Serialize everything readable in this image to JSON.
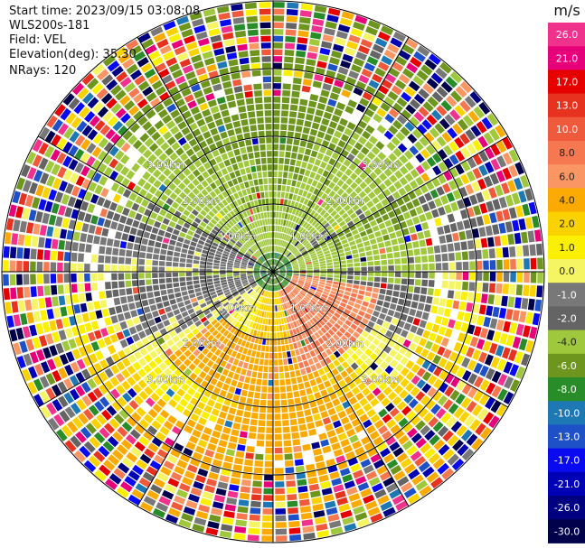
{
  "header": {
    "start_time": "Start time: 2023/09/15 03:08:08",
    "instrument": "WLS200s-181",
    "field": "Field: VEL",
    "elevation": "Elevation(deg): 35.30",
    "nrays": "NRays: 120"
  },
  "colorbar": {
    "unit": "m/s",
    "ticks": [
      "26.0",
      "21.0",
      "17.0",
      "13.0",
      "10.0",
      "8.0",
      "6.0",
      "4.0",
      "2.0",
      "1.0",
      "0.0",
      "-1.0",
      "-2.0",
      "-4.0",
      "-6.0",
      "-8.0",
      "-10.0",
      "-13.0",
      "-17.0",
      "-21.0",
      "-26.0",
      "-30.0"
    ],
    "colors": [
      "#f0328c",
      "#e6007a",
      "#e60000",
      "#e6321e",
      "#f05a3c",
      "#f57850",
      "#fa9664",
      "#faaa00",
      "#fad200",
      "#faf000",
      "#f5f564",
      "#787878",
      "#646464",
      "#a0c83c",
      "#6e961e",
      "#288c28",
      "#1e78b4",
      "#1e50c8",
      "#0a0af0",
      "#0000b4",
      "#000080",
      "#00004b"
    ]
  },
  "rings": [
    "1.00km",
    "2.00km",
    "3.00km"
  ],
  "ppi": {
    "rays": 120,
    "max_range_km": 4.0
  }
}
